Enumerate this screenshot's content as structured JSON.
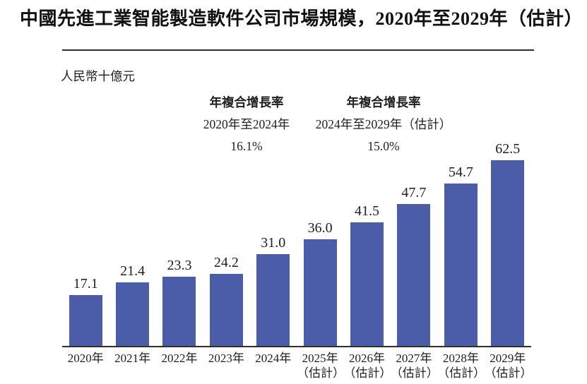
{
  "chart_data": {
    "type": "bar",
    "title": "中國先進工業智能製造軟件公司市場規模，2020年至2029年（估計）",
    "unit_label": "人民幣十億元",
    "ylabel": "人民幣十億元",
    "xlabel": "",
    "categories": [
      "2020年",
      "2021年",
      "2022年",
      "2023年",
      "2024年",
      "2025年（估計）",
      "2026年（估計）",
      "2027年（估計）",
      "2028年（估計）",
      "2029年（估計）"
    ],
    "values": [
      17.1,
      21.4,
      23.3,
      24.2,
      31.0,
      36.0,
      41.5,
      47.7,
      54.7,
      62.5
    ],
    "value_labels": [
      "17.1",
      "21.4",
      "23.3",
      "24.2",
      "31.0",
      "36.0",
      "41.5",
      "47.7",
      "54.7",
      "62.5"
    ],
    "annotations": [
      {
        "heading": "年複合增長率",
        "period": "2020年至2024年",
        "value": "16.1%"
      },
      {
        "heading": "年複合增長率",
        "period": "2024年至2029年（估計）",
        "value": "15.0%"
      }
    ],
    "bar_color": "#4B5DA8",
    "axis_color": "#2F2F2F",
    "text_color": "#1F1F1F",
    "ylim": [
      0,
      65
    ],
    "grid": false,
    "legend": "none"
  }
}
